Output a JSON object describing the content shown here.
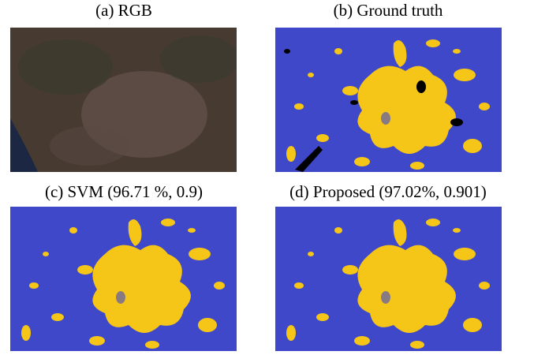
{
  "panels": [
    {
      "caption": "(a) RGB"
    },
    {
      "caption": "(b) Ground truth"
    },
    {
      "caption": "(c) SVM (96.71 %, 0.9)"
    },
    {
      "caption": "(d) Proposed (97.02%, 0.901)"
    }
  ]
}
